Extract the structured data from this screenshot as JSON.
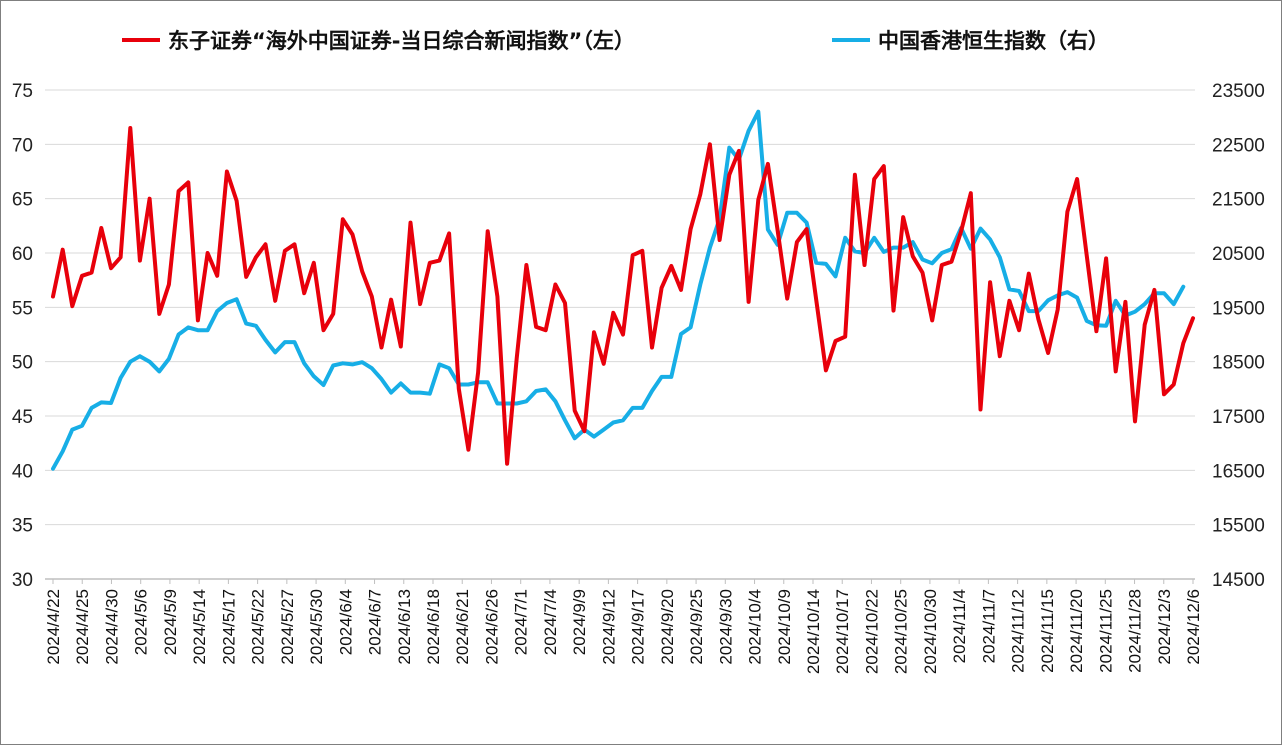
{
  "chart_data": {
    "type": "line",
    "legend_position": "top",
    "grid": true,
    "left_axis": {
      "ylim": [
        30,
        75
      ],
      "ticks": [
        30,
        35,
        40,
        45,
        50,
        55,
        60,
        65,
        70,
        75
      ]
    },
    "right_axis": {
      "ylim": [
        14500,
        23500
      ],
      "ticks": [
        14500,
        15500,
        16500,
        17500,
        18500,
        19500,
        20500,
        21500,
        22500,
        23500
      ]
    },
    "x_tick_labels": [
      "2024/4/22",
      "2024/4/25",
      "2024/4/30",
      "2024/5/6",
      "2024/5/9",
      "2024/5/14",
      "2024/5/17",
      "2024/5/22",
      "2024/5/27",
      "2024/5/30",
      "2024/6/4",
      "2024/6/7",
      "2024/6/13",
      "2024/6/18",
      "2024/6/21",
      "2024/6/26",
      "2024/7/1",
      "2024/7/4",
      "2024/9/9",
      "2024/9/12",
      "2024/9/17",
      "2024/9/20",
      "2024/9/25",
      "2024/9/30",
      "2024/10/4",
      "2024/10/9",
      "2024/10/14",
      "2024/10/17",
      "2024/10/22",
      "2024/10/25",
      "2024/10/30",
      "2024/11/4",
      "2024/11/7",
      "2024/11/12",
      "2024/11/15",
      "2024/11/20",
      "2024/11/25",
      "2024/11/28",
      "2024/12/3",
      "2024/12/6"
    ],
    "series": [
      {
        "name": "东子证券“海外中国证券-当日综合新闻指数”（左）",
        "axis": "left",
        "color": "#e8000b",
        "values": [
          56.0,
          60.3,
          55.1,
          57.9,
          58.2,
          62.3,
          58.6,
          59.6,
          71.5,
          59.3,
          65.0,
          54.4,
          57.1,
          65.7,
          66.5,
          53.8,
          60.0,
          57.9,
          67.5,
          64.8,
          57.8,
          59.6,
          60.8,
          55.6,
          60.2,
          60.8,
          56.3,
          59.1,
          52.9,
          54.4,
          63.1,
          61.7,
          58.3,
          56.0,
          51.3,
          55.7,
          51.4,
          62.8,
          55.3,
          59.1,
          59.3,
          61.8,
          47.5,
          41.9,
          49.0,
          62.0,
          56.0,
          40.6,
          50.3,
          58.9,
          53.2,
          52.9,
          57.1,
          55.4,
          45.5,
          43.6,
          52.7,
          49.8,
          54.5,
          52.5,
          59.8,
          60.2,
          51.3,
          56.8,
          58.8,
          56.6,
          62.2,
          65.4,
          70.0,
          61.2,
          67.2,
          69.4,
          55.5,
          64.9,
          68.2,
          62.1,
          55.8,
          61.0,
          62.2,
          55.7,
          49.2,
          51.9,
          52.3,
          67.2,
          58.9,
          66.8,
          68.0,
          54.7,
          63.3,
          59.7,
          58.2,
          53.8,
          58.9,
          59.2,
          62.0,
          65.5,
          45.6,
          57.3,
          50.5,
          55.6,
          52.9,
          58.1,
          53.9,
          50.8,
          54.8,
          63.8,
          66.8,
          59.8,
          52.8,
          59.5,
          49.1,
          55.5,
          44.5,
          53.4,
          56.6,
          47.0,
          47.9,
          51.7,
          54.0
        ]
      },
      {
        "name": "中国香港恒生指数（右）",
        "axis": "right",
        "color": "#17aee6",
        "values": [
          16530,
          16850,
          17250,
          17320,
          17650,
          17750,
          17740,
          18200,
          18500,
          18600,
          18500,
          18320,
          18550,
          19000,
          19130,
          19080,
          19080,
          19430,
          19580,
          19650,
          19200,
          19160,
          18900,
          18670,
          18860,
          18860,
          18470,
          18230,
          18070,
          18430,
          18470,
          18450,
          18490,
          18380,
          18180,
          17930,
          18100,
          17930,
          17930,
          17910,
          18450,
          18380,
          18080,
          18080,
          18120,
          18120,
          17730,
          17730,
          17730,
          17770,
          17960,
          17990,
          17770,
          17420,
          17090,
          17250,
          17120,
          17250,
          17380,
          17420,
          17650,
          17650,
          17960,
          18220,
          18220,
          19010,
          19130,
          19920,
          20600,
          21130,
          22440,
          22220,
          22750,
          23100,
          20930,
          20650,
          21240,
          21240,
          21060,
          20320,
          20300,
          20070,
          20780,
          20530,
          20500,
          20780,
          20520,
          20600,
          20600,
          20700,
          20380,
          20310,
          20500,
          20570,
          20960,
          20580,
          20950,
          20750,
          20420,
          19830,
          19800,
          19430,
          19430,
          19630,
          19720,
          19780,
          19680,
          19250,
          19170,
          19160,
          19620,
          19350,
          19420,
          19560,
          19760,
          19760,
          19560,
          19880
        ]
      }
    ]
  }
}
